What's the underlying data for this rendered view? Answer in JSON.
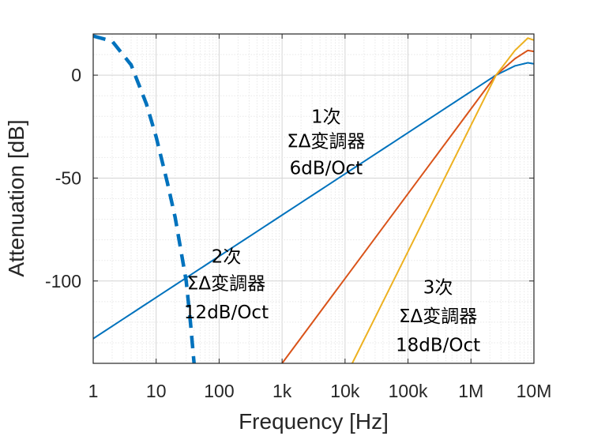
{
  "chart_data": {
    "type": "line",
    "xlabel": "Frequency [Hz]",
    "ylabel": "Attenuation [dB]",
    "x_scale": "log",
    "xlim": [
      1,
      10000000
    ],
    "ylim": [
      -140,
      20
    ],
    "grid": true,
    "x_ticks": [
      {
        "value": 1,
        "label": "1"
      },
      {
        "value": 10,
        "label": "10"
      },
      {
        "value": 100,
        "label": "100"
      },
      {
        "value": 1000,
        "label": "1k"
      },
      {
        "value": 10000,
        "label": "10k"
      },
      {
        "value": 100000,
        "label": "100k"
      },
      {
        "value": 1000000,
        "label": "1M"
      },
      {
        "value": 10000000,
        "label": "10M"
      }
    ],
    "y_ticks": [
      {
        "value": 0,
        "label": "0"
      },
      {
        "value": -50,
        "label": "-50"
      },
      {
        "value": -100,
        "label": "-100"
      }
    ],
    "series": [
      {
        "color": "#0072bd",
        "dashed": true,
        "points": [
          [
            1,
            19
          ],
          [
            2,
            16.5
          ],
          [
            4,
            5
          ],
          [
            7,
            -14
          ],
          [
            10,
            -30
          ],
          [
            15,
            -52
          ],
          [
            20,
            -69
          ],
          [
            25,
            -86
          ],
          [
            30,
            -100
          ],
          [
            35,
            -120
          ],
          [
            40,
            -140
          ]
        ]
      },
      {
        "color": "#0072bd",
        "points": [
          [
            1,
            -128
          ],
          [
            2500000,
            0
          ],
          [
            5000000,
            4.5
          ],
          [
            8000000,
            6
          ],
          [
            10000000,
            5.5
          ]
        ]
      },
      {
        "color": "#d95319",
        "points": [
          [
            1000,
            -140
          ],
          [
            2500000,
            0
          ],
          [
            5000000,
            8
          ],
          [
            8000000,
            12
          ],
          [
            10000000,
            11.5
          ]
        ]
      },
      {
        "color": "#edb120",
        "points": [
          [
            13000,
            -140
          ],
          [
            2500000,
            0
          ],
          [
            5000000,
            12
          ],
          [
            8000000,
            18
          ],
          [
            10000000,
            17
          ]
        ]
      }
    ],
    "annotations": [
      {
        "lines": [
          "1次",
          "ΣΔ変調器",
          "6dB/Oct"
        ],
        "x": 5000,
        "y": [
          -20,
          -32,
          -45
        ]
      },
      {
        "lines": [
          "2次",
          "ΣΔ変調器",
          "12dB/Oct"
        ],
        "x": 130,
        "y": [
          -88,
          -101,
          -115
        ]
      },
      {
        "lines": [
          "3次",
          "ΣΔ変調器",
          "18dB/Oct"
        ],
        "x": 300000,
        "y": [
          -103,
          -117,
          -131
        ]
      }
    ]
  }
}
